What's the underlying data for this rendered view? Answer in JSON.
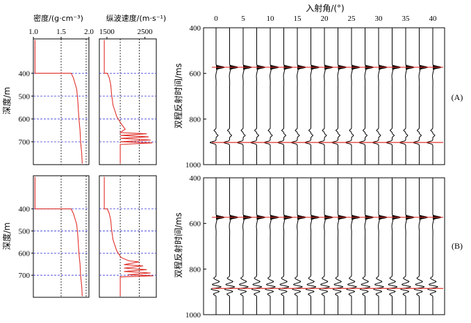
{
  "colors": {
    "log_curve": "#e0302a",
    "horizon_line": "#e0302a",
    "depth_gridline": "#3a3ad8",
    "guide_line": "#000000",
    "trace": "#000000"
  },
  "chart_data": [
    {
      "id": "density-top",
      "type": "line",
      "title": "密度/(g·cm⁻³)",
      "ylabel": "深度/m",
      "xlim": [
        1.0,
        2.0
      ],
      "x_ticks": [
        1.0,
        1.5,
        2.0
      ],
      "x_tick_labels": [
        "1.0",
        "1.5",
        "2.0"
      ],
      "ylim": [
        250,
        800
      ],
      "y_ticks": [
        400,
        500,
        600,
        700
      ],
      "y_tick_labels": [
        "400",
        "500",
        "600",
        "700"
      ],
      "y_inverted": true,
      "depth_gridlines": [
        400,
        500,
        600,
        700
      ],
      "guide_lines_x": [
        1.5,
        1.95
      ],
      "series": [
        {
          "points": [
            [
              1.03,
              255
            ],
            [
              1.03,
              400
            ],
            [
              1.68,
              400
            ],
            [
              1.72,
              420
            ],
            [
              1.78,
              470
            ],
            [
              1.8,
              520
            ],
            [
              1.82,
              600
            ],
            [
              1.84,
              650
            ],
            [
              1.85,
              700
            ],
            [
              1.87,
              750
            ],
            [
              1.88,
              795
            ]
          ]
        }
      ]
    },
    {
      "id": "velocity-top",
      "type": "line",
      "title": "纵波速度/(m·s⁻¹)",
      "xlim": [
        1300,
        2800
      ],
      "x_ticks": [
        1500,
        2500
      ],
      "x_tick_labels": [
        "1500",
        "2500"
      ],
      "ylim": [
        250,
        800
      ],
      "y_inverted": true,
      "depth_gridlines": [
        400,
        500,
        600,
        700
      ],
      "guide_lines_x": [
        1850,
        2350
      ],
      "series": [
        {
          "points": [
            [
              1430,
              255
            ],
            [
              1430,
              400
            ],
            [
              1510,
              400
            ],
            [
              1560,
              420
            ],
            [
              1600,
              450
            ],
            [
              1620,
              490
            ],
            [
              1660,
              540
            ],
            [
              1760,
              590
            ],
            [
              1870,
              620
            ],
            [
              1980,
              645
            ],
            [
              1850,
              660
            ],
            [
              2550,
              665
            ],
            [
              1850,
              672
            ],
            [
              2600,
              678
            ],
            [
              1850,
              685
            ],
            [
              2650,
              692
            ],
            [
              1850,
              700
            ],
            [
              2700,
              705
            ],
            [
              1850,
              712
            ],
            [
              1850,
              795
            ]
          ]
        }
      ]
    },
    {
      "id": "density-bottom",
      "type": "line",
      "ylabel": "深度/m",
      "xlim": [
        1.0,
        2.0
      ],
      "ylim": [
        250,
        800
      ],
      "y_ticks": [
        400,
        500,
        600,
        700
      ],
      "y_tick_labels": [
        "400",
        "500",
        "600",
        "700"
      ],
      "y_inverted": true,
      "depth_gridlines": [
        400,
        500,
        600,
        700
      ],
      "guide_lines_x": [
        1.5,
        1.95
      ],
      "series": [
        {
          "points": [
            [
              1.03,
              255
            ],
            [
              1.03,
              400
            ],
            [
              1.68,
              400
            ],
            [
              1.72,
              420
            ],
            [
              1.78,
              470
            ],
            [
              1.8,
              520
            ],
            [
              1.82,
              600
            ],
            [
              1.84,
              650
            ],
            [
              1.85,
              700
            ],
            [
              1.87,
              750
            ],
            [
              1.88,
              795
            ]
          ]
        }
      ]
    },
    {
      "id": "velocity-bottom",
      "type": "line",
      "xlim": [
        1300,
        2800
      ],
      "ylim": [
        250,
        800
      ],
      "y_inverted": true,
      "depth_gridlines": [
        400,
        500,
        600,
        700
      ],
      "guide_lines_x": [
        1850,
        2350
      ],
      "series": [
        {
          "points": [
            [
              1430,
              255
            ],
            [
              1430,
              400
            ],
            [
              1510,
              400
            ],
            [
              1560,
              420
            ],
            [
              1600,
              450
            ],
            [
              1620,
              490
            ],
            [
              1660,
              540
            ],
            [
              1760,
              590
            ],
            [
              1870,
              620
            ],
            [
              2080,
              635
            ],
            [
              2350,
              640
            ],
            [
              1950,
              652
            ],
            [
              2450,
              658
            ],
            [
              1950,
              668
            ],
            [
              2550,
              675
            ],
            [
              1950,
              683
            ],
            [
              2650,
              690
            ],
            [
              2050,
              698
            ],
            [
              2720,
              703
            ],
            [
              1850,
              708
            ],
            [
              1850,
              795
            ]
          ]
        }
      ]
    },
    {
      "id": "gather-A",
      "type": "seismic-gather",
      "panel_label": "(A)",
      "title": "入射角/(°)",
      "ylabel": "双程反射时间/ms",
      "x_ticks": [
        0,
        5,
        10,
        15,
        20,
        25,
        30,
        35,
        40
      ],
      "x_tick_labels": [
        "0",
        "5",
        "10",
        "15",
        "20",
        "25",
        "30",
        "35",
        "40"
      ],
      "trace_angles": [
        0,
        2.5,
        5,
        7.5,
        10,
        12.5,
        15,
        17.5,
        20,
        22.5,
        25,
        27.5,
        30,
        32.5,
        35,
        37.5,
        40
      ],
      "ylim": [
        400,
        1000
      ],
      "y_ticks": [
        400,
        600,
        800,
        1000
      ],
      "y_tick_labels": [
        "400",
        "600",
        "800",
        "1000"
      ],
      "horizons_ms": [
        573,
        903
      ],
      "events": [
        {
          "t": 573,
          "amp": 1.25,
          "tail": true
        },
        {
          "t": 850,
          "amp": -0.3
        },
        {
          "t": 872,
          "amp": 0.3
        },
        {
          "t": 903,
          "amp": -0.9
        }
      ]
    },
    {
      "id": "gather-B",
      "type": "seismic-gather",
      "panel_label": "(B)",
      "ylabel": "双程反射时间/ms",
      "trace_angles": [
        0,
        2.5,
        5,
        7.5,
        10,
        12.5,
        15,
        17.5,
        20,
        22.5,
        25,
        27.5,
        30,
        32.5,
        35,
        37.5,
        40
      ],
      "ylim": [
        400,
        1000
      ],
      "y_ticks": [
        400,
        600,
        800,
        1000
      ],
      "y_tick_labels": [
        "400",
        "600",
        "800",
        "1000"
      ],
      "horizons_ms": [
        573,
        885
      ],
      "events": [
        {
          "t": 573,
          "amp": 1.25,
          "tail": true
        },
        {
          "t": 840,
          "amp": -0.35
        },
        {
          "t": 855,
          "amp": 0.5
        },
        {
          "t": 868,
          "amp": -0.6
        },
        {
          "t": 878,
          "amp": 0.8
        },
        {
          "t": 888,
          "amp": -0.8
        },
        {
          "t": 898,
          "amp": 0.5
        },
        {
          "t": 910,
          "amp": -0.4
        }
      ]
    }
  ]
}
